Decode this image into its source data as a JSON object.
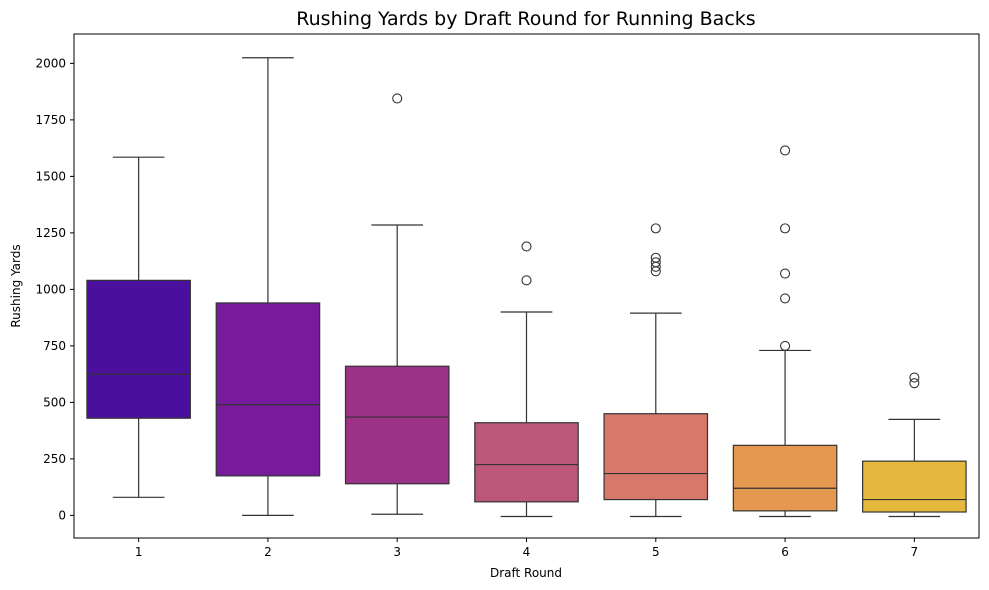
{
  "chart_data": {
    "type": "box",
    "title": "Rushing Yards by Draft Round for Running Backs",
    "xlabel": "Draft Round",
    "ylabel": "Rushing Yards",
    "ylim": [
      -100,
      2130
    ],
    "yticks": [
      0,
      250,
      500,
      750,
      1000,
      1250,
      1500,
      1750,
      2000
    ],
    "grid": false,
    "legend": "none",
    "categories": [
      "1",
      "2",
      "3",
      "4",
      "5",
      "6",
      "7"
    ],
    "boxes": [
      {
        "category": "1",
        "color": "#4a0f9c",
        "whisker_low": 80,
        "q1": 430,
        "median": 625,
        "q3": 1040,
        "whisker_high": 1585,
        "outliers": []
      },
      {
        "category": "2",
        "color": "#771a9c",
        "whisker_low": 0,
        "q1": 175,
        "median": 490,
        "q3": 940,
        "whisker_high": 2025,
        "outliers": []
      },
      {
        "category": "3",
        "color": "#9b3288",
        "whisker_low": 5,
        "q1": 140,
        "median": 435,
        "q3": 660,
        "whisker_high": 1285,
        "outliers": [
          1845
        ]
      },
      {
        "category": "4",
        "color": "#bd5779",
        "whisker_low": -5,
        "q1": 60,
        "median": 225,
        "q3": 410,
        "whisker_high": 900,
        "outliers": [
          1040,
          1190
        ]
      },
      {
        "category": "5",
        "color": "#d8786a",
        "whisker_low": -5,
        "q1": 70,
        "median": 185,
        "q3": 450,
        "whisker_high": 895,
        "outliers": [
          1080,
          1100,
          1120,
          1140,
          1270
        ]
      },
      {
        "category": "6",
        "color": "#e59850",
        "whisker_low": -5,
        "q1": 20,
        "median": 120,
        "q3": 310,
        "whisker_high": 730,
        "outliers": [
          750,
          960,
          1070,
          1270,
          1615
        ]
      },
      {
        "category": "7",
        "color": "#e6b93e",
        "whisker_low": -5,
        "q1": 15,
        "median": 70,
        "q3": 240,
        "whisker_high": 425,
        "outliers": [
          585,
          610
        ]
      }
    ]
  }
}
